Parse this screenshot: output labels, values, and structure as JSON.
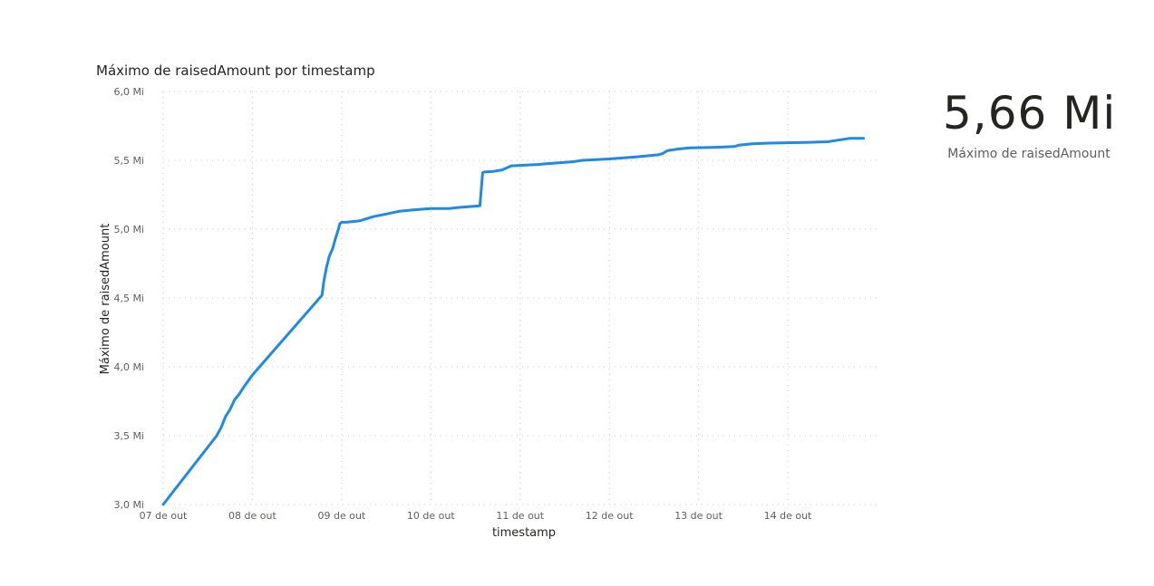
{
  "chart_data": {
    "type": "line",
    "title": "Máximo de raisedAmount por timestamp",
    "xlabel": "timestamp",
    "ylabel": "Máximo de raisedAmount",
    "x_ticks": [
      "07 de out",
      "08 de out",
      "09 de out",
      "10 de out",
      "11 de out",
      "12 de out",
      "13 de out",
      "14 de out"
    ],
    "y_ticks": [
      "3,0 Mi",
      "3,5 Mi",
      "4,0 Mi",
      "4,5 Mi",
      "5,0 Mi",
      "5,5 Mi",
      "6,0 Mi"
    ],
    "ylim": [
      3.0,
      6.0
    ],
    "y_unit": "Mi",
    "xlim_days": [
      0,
      7.9
    ],
    "grid": true,
    "line_color": "#2089e8",
    "series": [
      {
        "x_days_from_07_out": [
          0.0,
          0.6,
          0.65,
          0.7,
          0.75,
          0.8,
          0.85,
          0.9,
          1.0,
          1.78,
          1.8,
          1.83,
          1.86,
          1.9,
          1.93,
          1.96,
          1.98,
          2.0,
          2.05,
          2.2,
          2.35,
          2.5,
          2.65,
          2.8,
          3.0,
          3.2,
          3.35,
          3.55,
          3.58,
          3.6,
          3.7,
          3.8,
          3.85,
          3.9,
          4.2,
          4.3,
          4.6,
          4.7,
          5.0,
          5.3,
          5.55,
          5.6,
          5.65,
          5.75,
          5.9,
          6.2,
          6.4,
          6.45,
          6.6,
          6.8,
          7.2,
          7.45,
          7.5,
          7.6,
          7.7,
          7.85
        ],
        "y": [
          3.0,
          3.5,
          3.56,
          3.64,
          3.69,
          3.76,
          3.8,
          3.85,
          3.94,
          4.52,
          4.62,
          4.72,
          4.8,
          4.86,
          4.93,
          4.99,
          5.04,
          5.05,
          5.05,
          5.06,
          5.09,
          5.11,
          5.13,
          5.14,
          5.15,
          5.15,
          5.16,
          5.17,
          5.41,
          5.415,
          5.42,
          5.43,
          5.445,
          5.46,
          5.47,
          5.475,
          5.49,
          5.5,
          5.51,
          5.525,
          5.54,
          5.55,
          5.57,
          5.58,
          5.59,
          5.595,
          5.6,
          5.61,
          5.62,
          5.625,
          5.63,
          5.635,
          5.64,
          5.65,
          5.66,
          5.66
        ]
      }
    ]
  },
  "kpi": {
    "value": "5,66 Mi",
    "label": "Máximo de raisedAmount"
  }
}
